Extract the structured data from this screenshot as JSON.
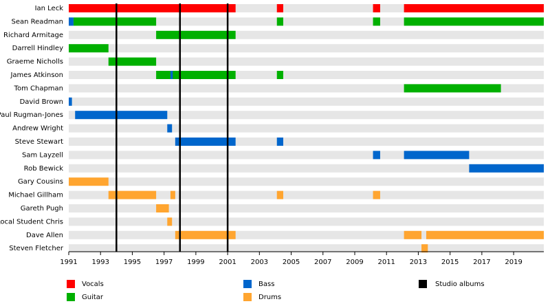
{
  "chart_data": {
    "type": "timeline",
    "categories": [
      "Ian Leck",
      "Sean Readman",
      "Richard Armitage",
      "Darrell Hindley",
      "Graeme Nicholls",
      "James Atkinson",
      "Tom Chapman",
      "David Brown",
      "Paul Rugman-Jones",
      "Andrew Wright",
      "Steve Stewart",
      "Sam Layzell",
      "Rob Bewick",
      "Gary Cousins",
      "Michael Gillham",
      "Gareth Pugh",
      "Local Student Chris",
      "Dave Allen",
      "Steven Fletcher"
    ],
    "series": [
      {
        "name": "Vocals",
        "color": "#ff0000",
        "values": [
          [
            [
              1991,
              2001.5
            ],
            [
              2004.1,
              2004.5
            ],
            [
              2010.15,
              2010.6
            ],
            [
              2012.1,
              2020.9
            ]
          ],
          [],
          [],
          [],
          [],
          [],
          [],
          [],
          [],
          [],
          [],
          [],
          [],
          [],
          [],
          [],
          [],
          [],
          []
        ]
      },
      {
        "name": "Guitar",
        "color": "#00b000",
        "values": [
          [],
          [
            [
              1991.3,
              1996.5
            ],
            [
              2004.1,
              2004.5
            ],
            [
              2010.15,
              2010.6
            ],
            [
              2012.1,
              2020.9
            ]
          ],
          [
            [
              1996.5,
              2001.5
            ]
          ],
          [
            [
              1991,
              1993.5
            ]
          ],
          [
            [
              1993.5,
              1996.5
            ]
          ],
          [
            [
              1996.5,
              2001.5
            ],
            [
              2004.1,
              2004.5
            ]
          ],
          [
            [
              2012.1,
              2018.2
            ]
          ],
          [],
          [],
          [],
          [],
          [],
          [],
          [],
          [],
          [],
          [],
          [],
          []
        ]
      },
      {
        "name": "Bass",
        "color": "#0066cc",
        "values": [
          [],
          [
            [
              1991,
              1991.3
            ]
          ],
          [],
          [],
          [],
          [
            [
              1997.4,
              1997.55
            ]
          ],
          [],
          [
            [
              1991,
              1991.2
            ]
          ],
          [
            [
              1991.4,
              1997.2
            ]
          ],
          [
            [
              1997.2,
              1997.5
            ]
          ],
          [
            [
              1997.7,
              2001.5
            ],
            [
              2004.1,
              2004.5
            ]
          ],
          [
            [
              2010.15,
              2010.6
            ],
            [
              2012.1,
              2016.2
            ]
          ],
          [
            [
              2016.2,
              2020.9
            ]
          ],
          [],
          [],
          [],
          [],
          [],
          []
        ]
      },
      {
        "name": "Drums",
        "color": "#ffa530",
        "values": [
          [],
          [],
          [],
          [],
          [],
          [],
          [],
          [],
          [],
          [],
          [],
          [],
          [],
          [
            [
              1991,
              1993.5
            ]
          ],
          [
            [
              1993.5,
              1996.5
            ],
            [
              1997.4,
              1997.7
            ],
            [
              2004.1,
              2004.5
            ],
            [
              2010.15,
              2010.6
            ]
          ],
          [
            [
              1996.5,
              1997.3
            ]
          ],
          [
            [
              1997.2,
              1997.5
            ]
          ],
          [
            [
              1997.7,
              2001.5
            ],
            [
              2012.1,
              2013.2
            ],
            [
              2013.5,
              2020.9
            ]
          ],
          [
            [
              2013.2,
              2013.6
            ]
          ]
        ]
      }
    ],
    "events": {
      "name": "Studio albums",
      "color": "#000000",
      "values": [
        1994,
        1998,
        2001
      ]
    },
    "xlim": [
      1991,
      2020.9
    ],
    "xticks": [
      1991,
      1993,
      1995,
      1997,
      1999,
      2001,
      2003,
      2005,
      2007,
      2009,
      2011,
      2013,
      2015,
      2017,
      2019
    ]
  }
}
